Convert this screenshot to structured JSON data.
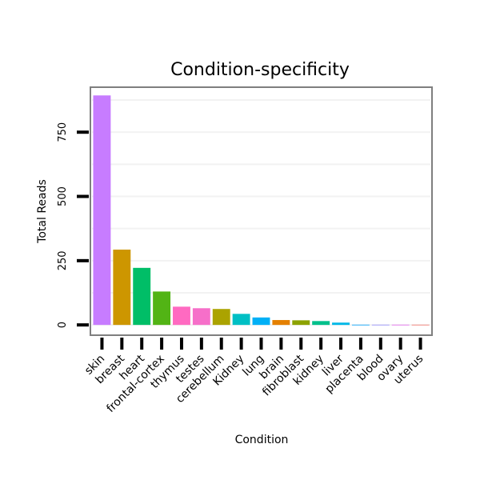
{
  "chart_data": {
    "type": "bar",
    "title": "Condition-specificity",
    "xlabel": "Condition",
    "ylabel": "Total Reads",
    "ylim": [
      -40,
      925
    ],
    "yticks": [
      0,
      250,
      500,
      750
    ],
    "grid": true,
    "categories": [
      "skin",
      "breast",
      "heart",
      "frontal-cortex",
      "thymus",
      "testes",
      "cerebellum",
      "Kidney",
      "lung",
      "brain",
      "fibroblast",
      "kidney",
      "liver",
      "placenta",
      "blood",
      "ovary",
      "uterus"
    ],
    "values": [
      893,
      293,
      222,
      130,
      71,
      65,
      62,
      43,
      29,
      19,
      18,
      15,
      9,
      1,
      1,
      1,
      1
    ],
    "colors": [
      "#c77cff",
      "#cd9600",
      "#00be67",
      "#52b415",
      "#ff6ac1",
      "#f66fc9",
      "#aba300",
      "#00bfc4",
      "#00b0f6",
      "#e48000",
      "#8ca200",
      "#00c08b",
      "#00b8e7",
      "#00a5ff",
      "#9590ff",
      "#e76bf3",
      "#f8766d"
    ]
  }
}
